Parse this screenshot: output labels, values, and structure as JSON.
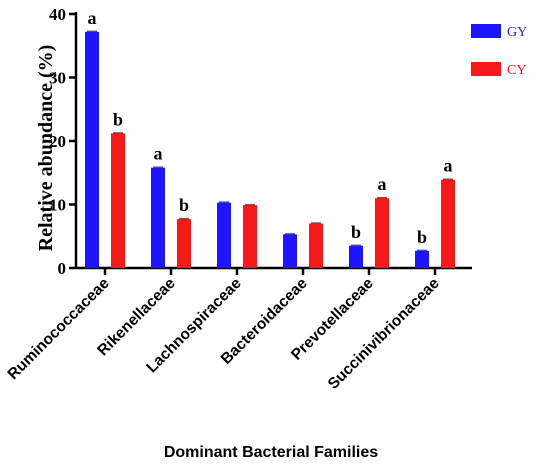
{
  "chart_data": {
    "type": "bar",
    "xlabel": "Dominant Bacterial Families",
    "ylabel": "Relative abundance (%)",
    "ylim": [
      0,
      40
    ],
    "yticks": [
      "0",
      "10",
      "20",
      "30",
      "40"
    ],
    "categories": [
      "Ruminococcaceae",
      "Rikenellaceae",
      "Lachnospiraceae",
      "Bacteroidaceae",
      "Prevotellaceae",
      "Succinivibrionaceae"
    ],
    "series": [
      {
        "name": "GY",
        "color": "#1f14ff",
        "values": [
          37.2,
          15.8,
          10.3,
          5.3,
          3.5,
          2.7
        ],
        "sig": [
          "a",
          "a",
          "",
          "",
          "b",
          "b"
        ]
      },
      {
        "name": "CY",
        "color": "#f41a1a",
        "values": [
          21.2,
          7.7,
          9.9,
          7.0,
          11.0,
          13.9
        ],
        "sig": [
          "b",
          "b",
          "",
          "",
          "a",
          "a"
        ]
      }
    ],
    "legend_position": "top-right",
    "grid": false
  }
}
